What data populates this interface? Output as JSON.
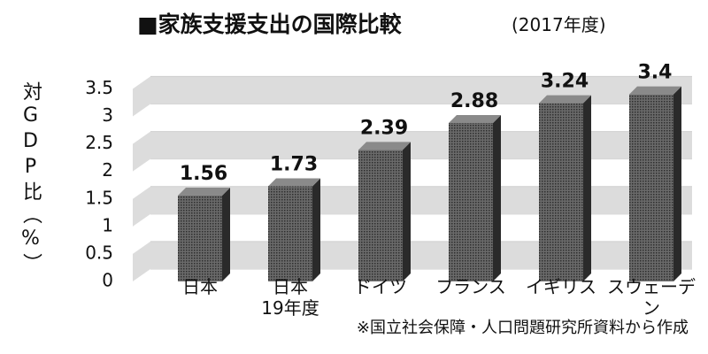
{
  "chart_data": {
    "type": "bar",
    "title": "■家族支援支出の国際比較",
    "subtitle": "(2017年度)",
    "y_label": "対GDP比（%）",
    "categories": [
      "日本",
      "日本\n19年度",
      "ドイツ",
      "フランス",
      "イギリス",
      "スウェーデン"
    ],
    "values": [
      1.56,
      1.73,
      2.39,
      2.88,
      3.24,
      3.4
    ],
    "color": "#555555",
    "ylim": [
      0,
      3.7
    ],
    "yticks": [
      0,
      0.5,
      1,
      1.5,
      2,
      2.5,
      3,
      3.5
    ],
    "grid": true,
    "note": "※国立社会保障・人口問題研究所資料から作成"
  }
}
